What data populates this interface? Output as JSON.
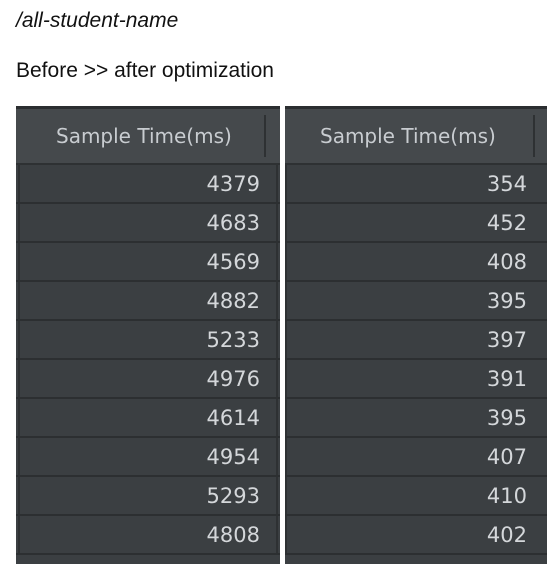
{
  "endpoint": "/all-student-name",
  "caption": "Before >> after optimization",
  "before": {
    "header": "Sample Time(ms)",
    "values": [
      "4379",
      "4683",
      "4569",
      "4882",
      "5233",
      "4976",
      "4614",
      "4954",
      "5293",
      "4808"
    ]
  },
  "after": {
    "header": "Sample Time(ms)",
    "values": [
      "354",
      "452",
      "408",
      "395",
      "397",
      "391",
      "395",
      "407",
      "410",
      "402"
    ]
  }
}
